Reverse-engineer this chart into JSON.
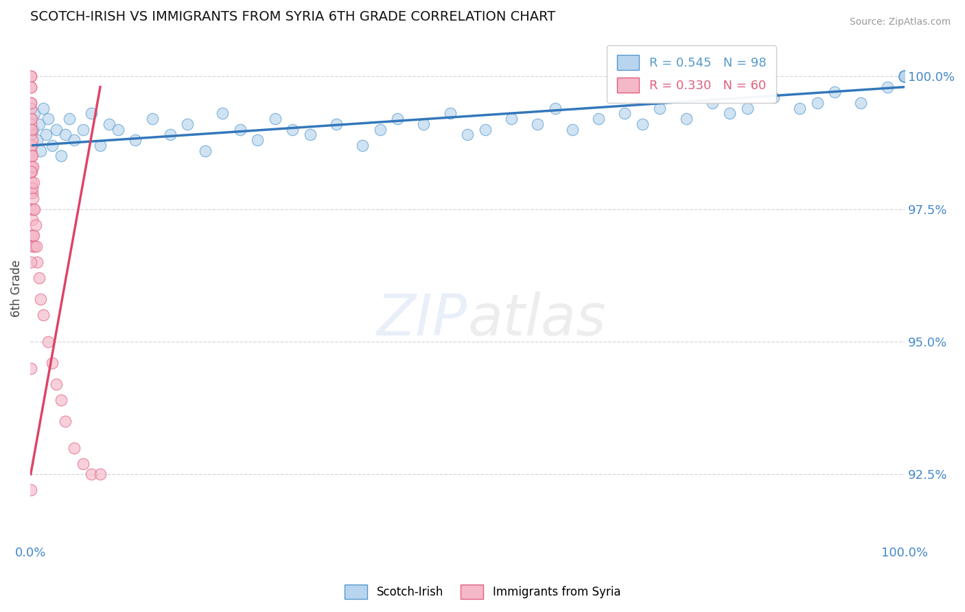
{
  "title": "SCOTCH-IRISH VS IMMIGRANTS FROM SYRIA 6TH GRADE CORRELATION CHART",
  "source": "Source: ZipAtlas.com",
  "ylabel": "6th Grade",
  "xlim": [
    0.0,
    100.0
  ],
  "ylim": [
    91.2,
    100.8
  ],
  "yticks": [
    92.5,
    95.0,
    97.5,
    100.0
  ],
  "yticklabels": [
    "92.5%",
    "95.0%",
    "97.5%",
    "100.0%"
  ],
  "xtick_left": "0.0%",
  "xtick_right": "100.0%",
  "blue_R": 0.545,
  "blue_N": 98,
  "pink_R": 0.33,
  "pink_N": 60,
  "blue_fill": "#b8d4ee",
  "pink_fill": "#f5b8c8",
  "blue_edge": "#5599cc",
  "pink_edge": "#e06080",
  "blue_line": "#3377bb",
  "pink_line": "#dd4466",
  "legend_blue": "Scotch-Irish",
  "legend_pink": "Immigrants from Syria",
  "blue_x": [
    0.3,
    0.5,
    0.8,
    1.0,
    1.2,
    1.5,
    1.8,
    2.0,
    2.5,
    3.0,
    3.5,
    4.0,
    4.5,
    5.0,
    6.0,
    7.0,
    8.0,
    9.0,
    10.0,
    12.0,
    14.0,
    16.0,
    18.0,
    20.0,
    22.0,
    24.0,
    26.0,
    28.0,
    30.0,
    32.0,
    35.0,
    38.0,
    40.0,
    42.0,
    45.0,
    48.0,
    50.0,
    52.0,
    55.0,
    58.0,
    60.0,
    62.0,
    65.0,
    68.0,
    70.0,
    72.0,
    75.0,
    78.0,
    80.0,
    82.0,
    85.0,
    88.0,
    90.0,
    92.0,
    95.0,
    98.0,
    100.0,
    100.0,
    100.0,
    100.0,
    100.0,
    100.0,
    100.0,
    100.0,
    100.0,
    100.0,
    100.0,
    100.0,
    100.0,
    100.0,
    100.0,
    100.0,
    100.0,
    100.0,
    100.0,
    100.0,
    100.0,
    100.0,
    100.0,
    100.0,
    100.0,
    100.0,
    100.0,
    100.0,
    100.0,
    100.0,
    100.0,
    100.0,
    100.0,
    100.0,
    100.0,
    100.0,
    100.0,
    100.0,
    100.0,
    100.0,
    100.0,
    100.0
  ],
  "blue_y": [
    99.0,
    99.3,
    98.8,
    99.1,
    98.6,
    99.4,
    98.9,
    99.2,
    98.7,
    99.0,
    98.5,
    98.9,
    99.2,
    98.8,
    99.0,
    99.3,
    98.7,
    99.1,
    99.0,
    98.8,
    99.2,
    98.9,
    99.1,
    98.6,
    99.3,
    99.0,
    98.8,
    99.2,
    99.0,
    98.9,
    99.1,
    98.7,
    99.0,
    99.2,
    99.1,
    99.3,
    98.9,
    99.0,
    99.2,
    99.1,
    99.4,
    99.0,
    99.2,
    99.3,
    99.1,
    99.4,
    99.2,
    99.5,
    99.3,
    99.4,
    99.6,
    99.4,
    99.5,
    99.7,
    99.5,
    99.8,
    100.0,
    100.0,
    100.0,
    100.0,
    100.0,
    100.0,
    100.0,
    100.0,
    100.0,
    100.0,
    100.0,
    100.0,
    100.0,
    100.0,
    100.0,
    100.0,
    100.0,
    100.0,
    100.0,
    100.0,
    100.0,
    100.0,
    100.0,
    100.0,
    100.0,
    100.0,
    100.0,
    100.0,
    100.0,
    100.0,
    100.0,
    100.0,
    100.0,
    100.0,
    100.0,
    100.0,
    100.0,
    100.0,
    100.0,
    100.0,
    100.0,
    100.0
  ],
  "pink_x": [
    0.05,
    0.05,
    0.05,
    0.05,
    0.05,
    0.05,
    0.05,
    0.08,
    0.08,
    0.08,
    0.08,
    0.08,
    0.08,
    0.1,
    0.1,
    0.1,
    0.1,
    0.1,
    0.1,
    0.1,
    0.12,
    0.12,
    0.12,
    0.15,
    0.15,
    0.15,
    0.2,
    0.2,
    0.2,
    0.2,
    0.2,
    0.25,
    0.25,
    0.3,
    0.3,
    0.3,
    0.35,
    0.4,
    0.4,
    0.5,
    0.5,
    0.6,
    0.7,
    0.8,
    1.0,
    1.2,
    1.5,
    2.0,
    2.5,
    3.0,
    3.5,
    4.0,
    5.0,
    6.0,
    7.0,
    8.0,
    0.05,
    0.05,
    0.08,
    0.1
  ],
  "pink_y": [
    100.0,
    100.0,
    99.8,
    99.5,
    99.2,
    98.9,
    98.5,
    99.8,
    99.4,
    99.0,
    98.6,
    98.2,
    97.8,
    99.5,
    99.1,
    98.7,
    98.3,
    97.9,
    97.5,
    97.0,
    99.2,
    98.7,
    98.2,
    99.0,
    98.5,
    98.0,
    98.8,
    98.3,
    97.8,
    97.3,
    96.8,
    98.5,
    97.9,
    98.3,
    97.7,
    97.0,
    97.5,
    98.0,
    97.0,
    97.5,
    96.8,
    97.2,
    96.8,
    96.5,
    96.2,
    95.8,
    95.5,
    95.0,
    94.6,
    94.2,
    93.9,
    93.5,
    93.0,
    92.7,
    92.5,
    92.5,
    92.2,
    94.5,
    96.5,
    98.2
  ],
  "blue_trendline_x": [
    0.3,
    100.0
  ],
  "blue_trendline_y": [
    98.7,
    99.8
  ],
  "pink_trendline_x": [
    0.05,
    8.0
  ],
  "pink_trendline_y": [
    92.5,
    99.8
  ]
}
